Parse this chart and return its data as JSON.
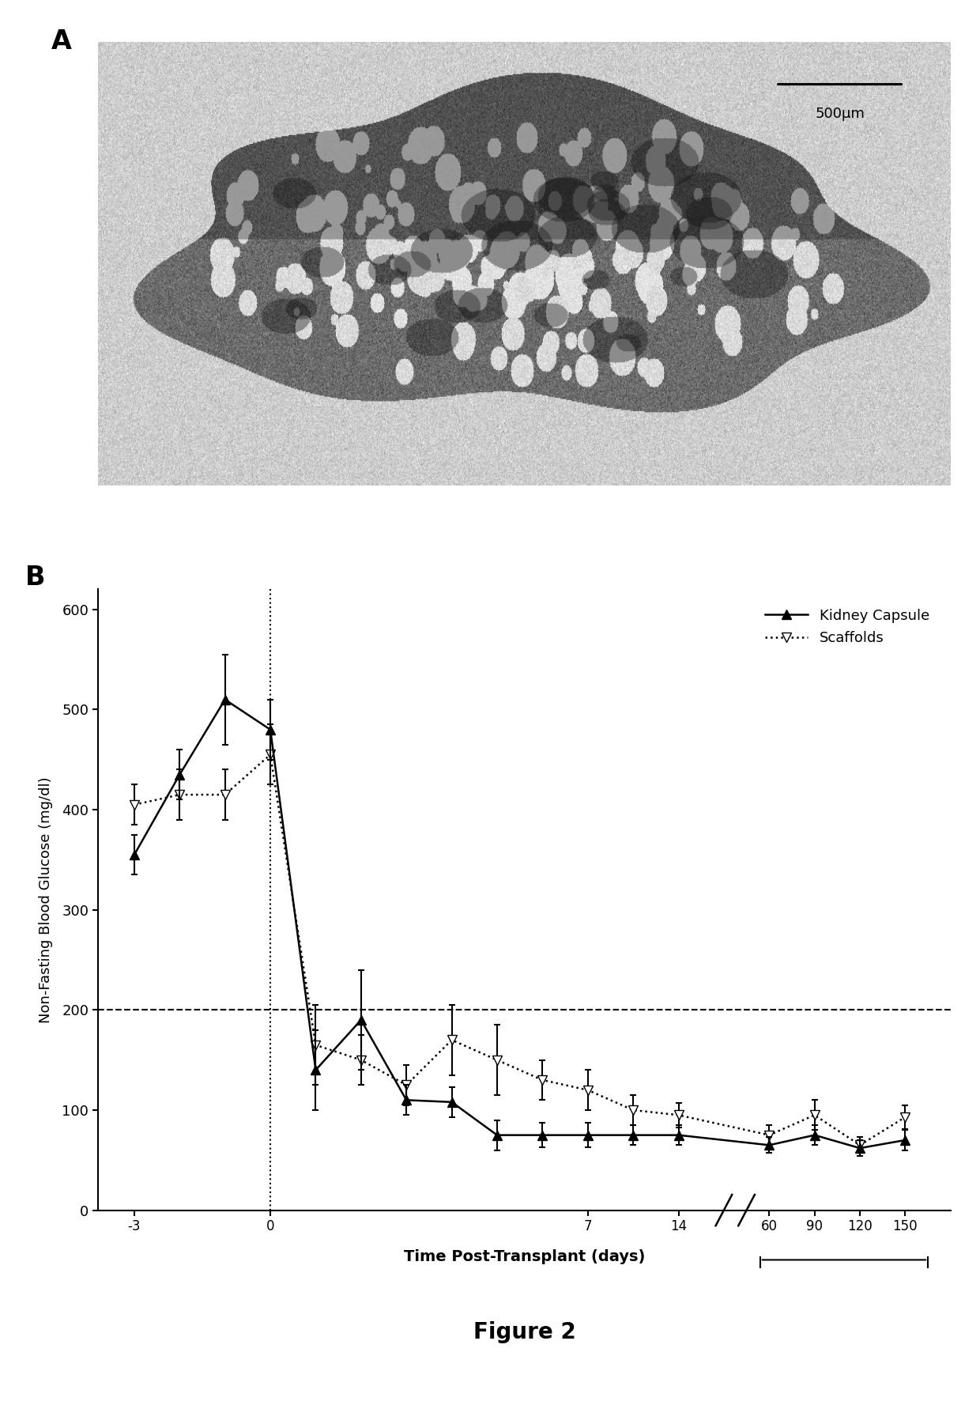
{
  "title_A": "A",
  "title_B": "B",
  "figure_caption": "Figure 2",
  "scalebar_label": "500μm",
  "kidney_x_pos": [
    0,
    1,
    2,
    3,
    4,
    5,
    6,
    7,
    8,
    9,
    10,
    11,
    12,
    14,
    15,
    16,
    17
  ],
  "kidney_y": [
    355,
    435,
    510,
    480,
    140,
    190,
    110,
    108,
    75,
    75,
    75,
    75,
    75,
    65,
    75,
    62,
    70
  ],
  "kidney_err": [
    20,
    25,
    45,
    30,
    40,
    50,
    15,
    15,
    15,
    12,
    12,
    10,
    10,
    8,
    10,
    8,
    10
  ],
  "scaffold_x_pos": [
    0,
    1,
    2,
    3,
    4,
    5,
    6,
    7,
    8,
    9,
    10,
    11,
    12,
    14,
    15,
    16,
    17
  ],
  "scaffold_y": [
    405,
    415,
    415,
    455,
    165,
    150,
    125,
    170,
    150,
    130,
    120,
    100,
    95,
    75,
    95,
    65,
    93
  ],
  "scaffold_err": [
    20,
    25,
    25,
    30,
    40,
    25,
    20,
    35,
    35,
    20,
    20,
    15,
    12,
    10,
    15,
    8,
    12
  ],
  "xtick_positions": [
    0,
    3,
    10,
    12,
    14,
    15,
    16,
    17
  ],
  "xtick_labels": [
    "-3",
    "0",
    "7",
    "14",
    "60",
    "90",
    "120",
    "150"
  ],
  "ylabel": "Non-Fasting Blood Glucose (mg/dl)",
  "xlabel": "Time Post-Transplant (days)",
  "ylim": [
    0,
    620
  ],
  "yticks": [
    0,
    100,
    200,
    300,
    400,
    500,
    600
  ],
  "dashed_line_y": 200,
  "vline_pos": 3,
  "legend_kidney": "Kidney Capsule",
  "legend_scaffold": "Scaffolds"
}
